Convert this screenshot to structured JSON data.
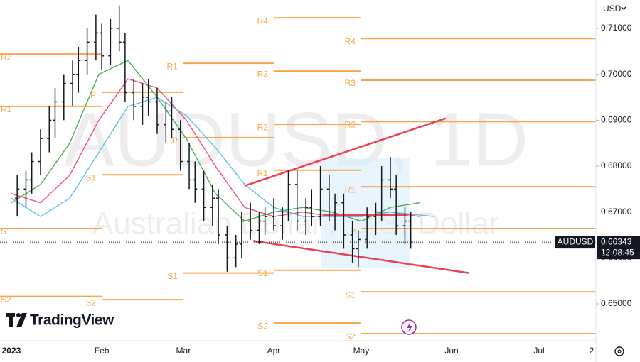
{
  "chart_data": {
    "type": "ohlc",
    "watermark": "AUDUSD, 1D",
    "watermark_sub": "Australian Dollar / U.S. Dollar",
    "currency": "USD",
    "symbol": "AUDUSD",
    "last_price": {
      "value": 0.66343,
      "label": "0.66343"
    },
    "countdown": "12:08:45",
    "brand": "TradingView",
    "xlim": [
      -3.9,
      200.5
    ],
    "ylim": [
      0.64196,
      0.71618
    ],
    "grid": false,
    "xticks": [
      {
        "value": 0,
        "label": "2023"
      },
      {
        "value": 31,
        "label": "Feb"
      },
      {
        "value": 59,
        "label": "Mar"
      },
      {
        "value": 90,
        "label": "Apr"
      },
      {
        "value": 120,
        "label": "May"
      },
      {
        "value": 151,
        "label": "Jun"
      },
      {
        "value": 181,
        "label": "Jul"
      },
      {
        "value": 199,
        "label": "2"
      }
    ],
    "yticks": [
      {
        "value": 0.71,
        "label": "0.71000"
      },
      {
        "value": 0.7,
        "label": "0.70000"
      },
      {
        "value": 0.69,
        "label": "0.69000"
      },
      {
        "value": 0.68,
        "label": "0.68000"
      },
      {
        "value": 0.67,
        "label": "0.67000"
      },
      {
        "value": 0.66,
        "label": "0.66000"
      },
      {
        "value": 0.65,
        "label": "0.65000"
      }
    ],
    "bar_color": "#131722",
    "x": [
      2,
      5,
      7,
      10,
      13,
      15,
      18,
      21,
      23,
      26,
      29,
      31,
      34,
      37,
      39,
      42,
      45,
      47,
      50,
      53,
      55,
      58,
      61,
      63,
      66,
      69,
      71,
      74,
      77,
      79,
      82,
      85,
      87,
      90,
      93,
      95,
      98,
      101,
      103,
      106,
      109,
      111,
      114,
      117,
      119,
      122,
      125,
      127,
      130,
      132,
      135,
      137
    ],
    "ohlc": [
      [
        0.673,
        0.678,
        0.669,
        0.675
      ],
      [
        0.675,
        0.679,
        0.671,
        0.677
      ],
      [
        0.677,
        0.683,
        0.674,
        0.681
      ],
      [
        0.681,
        0.688,
        0.678,
        0.686
      ],
      [
        0.686,
        0.693,
        0.683,
        0.69
      ],
      [
        0.69,
        0.697,
        0.686,
        0.694
      ],
      [
        0.694,
        0.7,
        0.69,
        0.698
      ],
      [
        0.698,
        0.703,
        0.693,
        0.7
      ],
      [
        0.7,
        0.706,
        0.696,
        0.703
      ],
      [
        0.703,
        0.71,
        0.7,
        0.707
      ],
      [
        0.707,
        0.713,
        0.703,
        0.709
      ],
      [
        0.709,
        0.711,
        0.701,
        0.704
      ],
      [
        0.704,
        0.712,
        0.702,
        0.71
      ],
      [
        0.71,
        0.715,
        0.705,
        0.707
      ],
      [
        0.707,
        0.709,
        0.694,
        0.696
      ],
      [
        0.696,
        0.699,
        0.69,
        0.693
      ],
      [
        0.693,
        0.698,
        0.689,
        0.695
      ],
      [
        0.695,
        0.699,
        0.691,
        0.694
      ],
      [
        0.694,
        0.697,
        0.687,
        0.689
      ],
      [
        0.689,
        0.694,
        0.685,
        0.692
      ],
      [
        0.692,
        0.695,
        0.686,
        0.688
      ],
      [
        0.688,
        0.69,
        0.679,
        0.681
      ],
      [
        0.681,
        0.685,
        0.675,
        0.677
      ],
      [
        0.677,
        0.681,
        0.672,
        0.675
      ],
      [
        0.675,
        0.679,
        0.668,
        0.671
      ],
      [
        0.671,
        0.676,
        0.667,
        0.673
      ],
      [
        0.673,
        0.675,
        0.663,
        0.665
      ],
      [
        0.665,
        0.667,
        0.657,
        0.66
      ],
      [
        0.66,
        0.665,
        0.658,
        0.663
      ],
      [
        0.663,
        0.67,
        0.66,
        0.668
      ],
      [
        0.668,
        0.672,
        0.664,
        0.666
      ],
      [
        0.666,
        0.67,
        0.663,
        0.668
      ],
      [
        0.668,
        0.671,
        0.665,
        0.669
      ],
      [
        0.669,
        0.673,
        0.666,
        0.667
      ],
      [
        0.667,
        0.671,
        0.664,
        0.67
      ],
      [
        0.67,
        0.679,
        0.668,
        0.676
      ],
      [
        0.676,
        0.679,
        0.666,
        0.668
      ],
      [
        0.668,
        0.673,
        0.665,
        0.671
      ],
      [
        0.671,
        0.675,
        0.667,
        0.669
      ],
      [
        0.669,
        0.68,
        0.667,
        0.675
      ],
      [
        0.675,
        0.678,
        0.668,
        0.67
      ],
      [
        0.67,
        0.674,
        0.666,
        0.672
      ],
      [
        0.672,
        0.674,
        0.662,
        0.665
      ],
      [
        0.665,
        0.668,
        0.659,
        0.662
      ],
      [
        0.662,
        0.666,
        0.658,
        0.664
      ],
      [
        0.664,
        0.671,
        0.662,
        0.669
      ],
      [
        0.669,
        0.672,
        0.665,
        0.67
      ],
      [
        0.67,
        0.68,
        0.668,
        0.677
      ],
      [
        0.677,
        0.682,
        0.673,
        0.675
      ],
      [
        0.675,
        0.678,
        0.665,
        0.667
      ],
      [
        0.667,
        0.671,
        0.663,
        0.668
      ],
      [
        0.668,
        0.67,
        0.662,
        0.66343
      ]
    ],
    "series": [
      {
        "color": "#4caf50",
        "x": [
          0,
          10,
          20,
          30,
          40,
          50,
          60,
          70,
          80,
          90,
          100,
          110,
          120,
          130,
          140
        ],
        "values": [
          0.672,
          0.676,
          0.685,
          0.7,
          0.703,
          0.695,
          0.686,
          0.674,
          0.668,
          0.67,
          0.671,
          0.67,
          0.668,
          0.671,
          0.672
        ]
      },
      {
        "color": "#f0507a",
        "x": [
          0,
          10,
          20,
          30,
          40,
          50,
          60,
          70,
          80,
          90,
          100,
          110,
          120,
          130,
          140
        ],
        "values": [
          0.674,
          0.672,
          0.678,
          0.69,
          0.699,
          0.697,
          0.69,
          0.68,
          0.671,
          0.669,
          0.67,
          0.669,
          0.669,
          0.67,
          0.669
        ]
      },
      {
        "color": "#5bc0eb",
        "x": [
          0,
          10,
          20,
          30,
          40,
          50,
          60,
          70,
          80,
          90,
          100,
          110,
          120,
          130,
          145
        ],
        "values": [
          0.673,
          0.669,
          0.673,
          0.683,
          0.693,
          0.695,
          0.691,
          0.684,
          0.676,
          0.671,
          0.669,
          0.669,
          0.669,
          0.67,
          0.669
        ]
      }
    ],
    "pivot_color": "#f7a54b",
    "pivots": [
      {
        "label": "R2",
        "value": 0.7044,
        "from": -4,
        "to": 31
      },
      {
        "label": "R1",
        "value": 0.693,
        "from": -4,
        "to": 31
      },
      {
        "label": "S1",
        "value": 0.6664,
        "from": -4,
        "to": 31
      },
      {
        "label": "S2",
        "value": 0.6516,
        "from": -4,
        "to": 31
      },
      {
        "label": "P",
        "value": 0.6961,
        "from": 31,
        "to": 59
      },
      {
        "label": "S1",
        "value": 0.6781,
        "from": 31,
        "to": 59
      },
      {
        "label": "S2",
        "value": 0.6509,
        "from": 31,
        "to": 59
      },
      {
        "label": "R1",
        "value": 0.7024,
        "from": 59,
        "to": 90
      },
      {
        "label": "P",
        "value": 0.6862,
        "from": 59,
        "to": 90
      },
      {
        "label": "S1",
        "value": 0.6567,
        "from": 59,
        "to": 90
      },
      {
        "label": "R4",
        "value": 0.7123,
        "from": 90,
        "to": 120
      },
      {
        "label": "R3",
        "value": 0.7007,
        "from": 90,
        "to": 120
      },
      {
        "label": "R2",
        "value": 0.6891,
        "from": 90,
        "to": 120
      },
      {
        "label": "R1",
        "value": 0.6791,
        "from": 90,
        "to": 120
      },
      {
        "label": "S1",
        "value": 0.6573,
        "from": 90,
        "to": 120
      },
      {
        "label": "S2",
        "value": 0.6458,
        "from": 90,
        "to": 120
      },
      {
        "label": "R4",
        "value": 0.7078,
        "from": 120,
        "to": 200.5
      },
      {
        "label": "R3",
        "value": 0.6987,
        "from": 120,
        "to": 200.5
      },
      {
        "label": "R2",
        "value": 0.6897,
        "from": 120,
        "to": 200.5
      },
      {
        "label": "R1",
        "value": 0.6755,
        "from": 120,
        "to": 200.5
      },
      {
        "label": "P",
        "value": 0.6664,
        "from": 120,
        "to": 200.5
      },
      {
        "label": "S1",
        "value": 0.6526,
        "from": 120,
        "to": 200.5
      },
      {
        "label": "S2",
        "value": 0.6435,
        "from": 120,
        "to": 200.5
      }
    ],
    "trend_color": "#f0404f",
    "trendlines": [
      {
        "x": [
          80,
          149
        ],
        "values": [
          0.6757,
          0.6904
        ]
      },
      {
        "x": [
          83,
          157
        ],
        "values": [
          0.6637,
          0.6567
        ]
      },
      {
        "x": [
          107,
          136
        ],
        "values": [
          0.6693,
          0.6693
        ]
      }
    ]
  }
}
